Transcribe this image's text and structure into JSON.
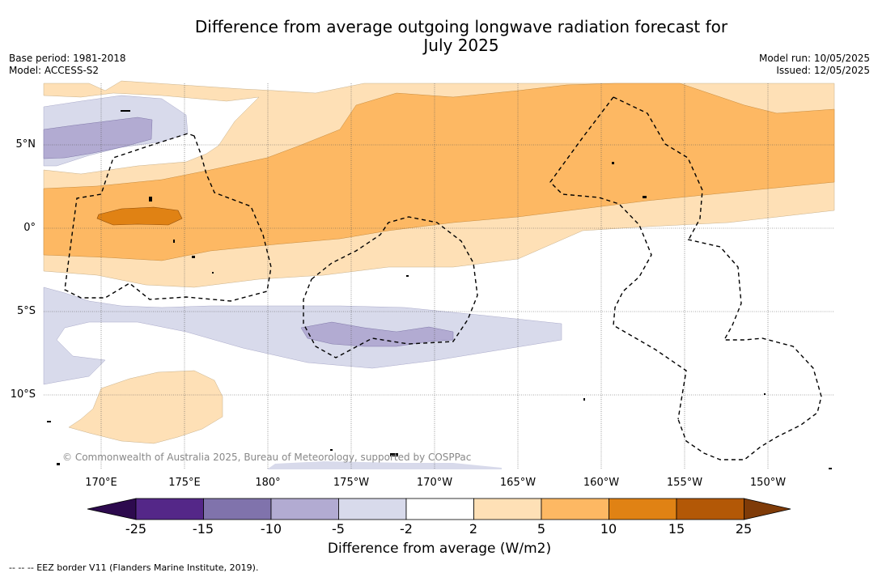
{
  "header": {
    "title_line1": "Difference from average outgoing longwave radiation forecast for",
    "title_line2": "July 2025",
    "base_period": "Base period: 1981-2018",
    "model": "Model: ACCESS-S2",
    "model_run": "Model run: 10/05/2025",
    "issued": "Issued: 12/05/2025"
  },
  "map": {
    "lat_labels": [
      "5°N",
      "0°",
      "5°S",
      "10°S"
    ],
    "lon_labels": [
      "170°E",
      "175°E",
      "180°",
      "175°W",
      "170°W",
      "165°W",
      "160°W",
      "155°W",
      "150°W"
    ],
    "copyright": "© Commonwealth of Australia 2025, Bureau of Meteorology, supported by COSPPac"
  },
  "colorbar": {
    "ticks": [
      "-25",
      "-15",
      "-10",
      "-5",
      "-2",
      "2",
      "5",
      "10",
      "15",
      "25"
    ],
    "colors": [
      "#2d0a4e",
      "#542788",
      "#8073ac",
      "#b2abd2",
      "#d8daeb",
      "#ffffff",
      "#fee0b6",
      "#fdb863",
      "#e08214",
      "#b35806",
      "#7f3b08"
    ],
    "label": "Difference from average (W/m2)"
  },
  "footnote": "--  --  -- EEZ border V11 (Flanders Marine Institute, 2019)."
}
